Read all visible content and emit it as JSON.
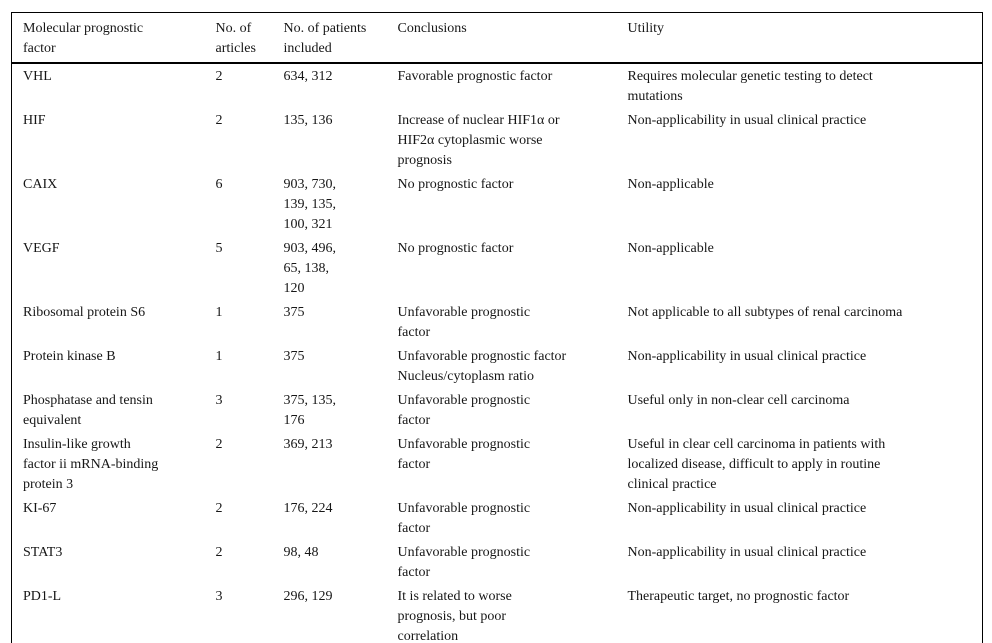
{
  "colors": {
    "background": "#ffffff",
    "text": "#161616",
    "border": "#000000"
  },
  "table": {
    "fields": [
      "factor",
      "articles",
      "patients",
      "conclusions",
      "utility"
    ],
    "columns": [
      {
        "label": "Molecular prognostic\nfactor"
      },
      {
        "label": "No. of\narticles"
      },
      {
        "label": "No. of patients\nincluded"
      },
      {
        "label": "Conclusions"
      },
      {
        "label": "Utility"
      }
    ],
    "rows": [
      {
        "factor": "VHL",
        "articles": "2",
        "patients": "634, 312",
        "conclusions": "Favorable prognostic factor",
        "utility": "Requires molecular genetic testing to detect\nmutations"
      },
      {
        "factor": "HIF",
        "articles": "2",
        "patients": "135, 136",
        "conclusions": "Increase of nuclear HIF1α or\nHIF2α cytoplasmic worse\nprognosis",
        "utility": "Non-applicability in usual clinical practice"
      },
      {
        "factor": "CAIX",
        "articles": "6",
        "patients": "903, 730,\n139, 135,\n100, 321",
        "conclusions": "No prognostic factor",
        "utility": "Non-applicable"
      },
      {
        "factor": "VEGF",
        "articles": "5",
        "patients": "903, 496,\n65, 138,\n120",
        "conclusions": "No prognostic factor",
        "utility": "Non-applicable"
      },
      {
        "factor": "Ribosomal protein S6",
        "articles": "1",
        "patients": "375",
        "conclusions": "Unfavorable prognostic\nfactor",
        "utility": "Not applicable to all subtypes of renal carcinoma"
      },
      {
        "factor": "Protein kinase B",
        "articles": "1",
        "patients": "375",
        "conclusions": "Unfavorable prognostic factor\nNucleus/cytoplasm ratio",
        "utility": "Non-applicability in usual clinical practice"
      },
      {
        "factor": "Phosphatase and tensin\nequivalent",
        "articles": "3",
        "patients": "375, 135,\n176",
        "conclusions": "Unfavorable prognostic\nfactor",
        "utility": "Useful only in non-clear cell carcinoma"
      },
      {
        "factor": "Insulin-like growth\nfactor ii mRNA-binding\nprotein 3",
        "articles": "2",
        "patients": "369, 213",
        "conclusions": "Unfavorable prognostic\nfactor",
        "utility": "Useful in clear cell carcinoma in patients with\nlocalized disease, difficult to apply in routine\nclinical practice"
      },
      {
        "factor": "KI-67",
        "articles": "2",
        "patients": "176, 224",
        "conclusions": "Unfavorable prognostic\nfactor",
        "utility": "Non-applicability in usual clinical practice"
      },
      {
        "factor": "STAT3",
        "articles": "2",
        "patients": "98, 48",
        "conclusions": "Unfavorable prognostic\nfactor",
        "utility": "Non-applicability in usual clinical practice"
      },
      {
        "factor": "PD1-L",
        "articles": "3",
        "patients": "296, 129",
        "conclusions": "It is related to worse\nprognosis, but poor\ncorrelation",
        "utility": "Therapeutic target, no prognostic factor"
      }
    ]
  }
}
